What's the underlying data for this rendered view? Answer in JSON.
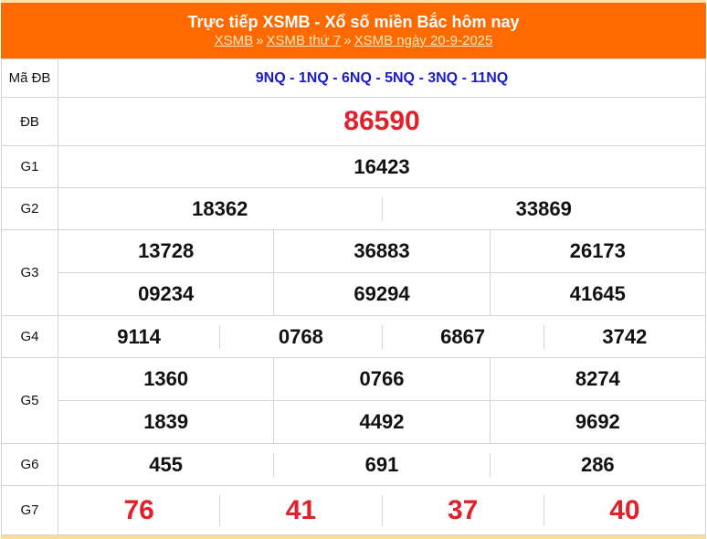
{
  "header": {
    "title": "Trực tiếp XSMB - Xổ số miền Bắc hôm nay",
    "breadcrumbs": [
      "XSMB",
      "XSMB thứ 7",
      "XSMB ngày 20-9-2025"
    ],
    "separator": "»",
    "bg_color": "#ff6a00"
  },
  "rows": {
    "madb": {
      "label": "Mã ĐB",
      "value": "9NQ - 1NQ - 6NQ - 5NQ - 3NQ - 11NQ"
    },
    "db": {
      "label": "ĐB",
      "value": "86590"
    },
    "g1": {
      "label": "G1",
      "values": [
        "16423"
      ]
    },
    "g2": {
      "label": "G2",
      "values": [
        "18362",
        "33869"
      ]
    },
    "g3": {
      "label": "G3",
      "values": [
        "13728",
        "36883",
        "26173",
        "09234",
        "69294",
        "41645"
      ]
    },
    "g4": {
      "label": "G4",
      "values": [
        "9114",
        "0768",
        "6867",
        "3742"
      ]
    },
    "g5": {
      "label": "G5",
      "values": [
        "1360",
        "0766",
        "8274",
        "1839",
        "4492",
        "9692"
      ]
    },
    "g6": {
      "label": "G6",
      "values": [
        "455",
        "691",
        "286"
      ]
    },
    "g7": {
      "label": "G7",
      "values": [
        "76",
        "41",
        "37",
        "40"
      ]
    }
  },
  "colors": {
    "highlight": "#e0202a",
    "code": "#1a1acc"
  }
}
